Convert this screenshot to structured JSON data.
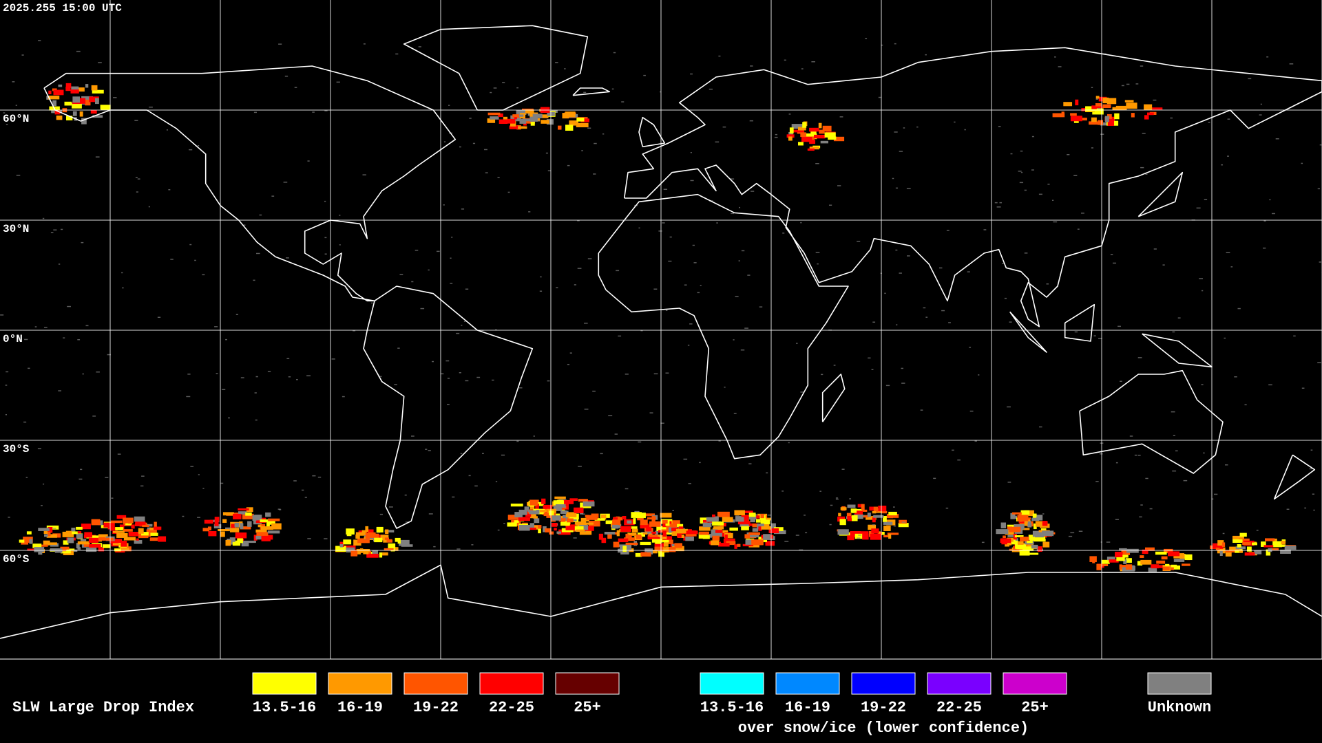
{
  "header": {
    "timestamp": "2025.255 15:00 UTC"
  },
  "map": {
    "latitude_labels": [
      "60°N",
      "30°N",
      "0°N",
      "30°S",
      "60°S"
    ]
  },
  "legend": {
    "title": "SLW Large Drop Index",
    "groups": [
      {
        "items": [
          {
            "label": "13.5-16",
            "color": "#ffff00"
          },
          {
            "label": "16-19",
            "color": "#ff9900"
          },
          {
            "label": "19-22",
            "color": "#ff5500"
          },
          {
            "label": "22-25",
            "color": "#ff0000"
          },
          {
            "label": "25+",
            "color": "#660000"
          }
        ]
      },
      {
        "items": [
          {
            "label": "13.5-16",
            "color": "#00ffff"
          },
          {
            "label": "16-19",
            "color": "#0088ff"
          },
          {
            "label": "19-22",
            "color": "#0000ff"
          },
          {
            "label": "22-25",
            "color": "#7a00ff"
          },
          {
            "label": "25+",
            "color": "#cc00cc"
          }
        ],
        "caption": "over snow/ice (lower confidence)"
      },
      {
        "items": [
          {
            "label": "Unknown",
            "color": "#808080"
          }
        ]
      }
    ]
  }
}
